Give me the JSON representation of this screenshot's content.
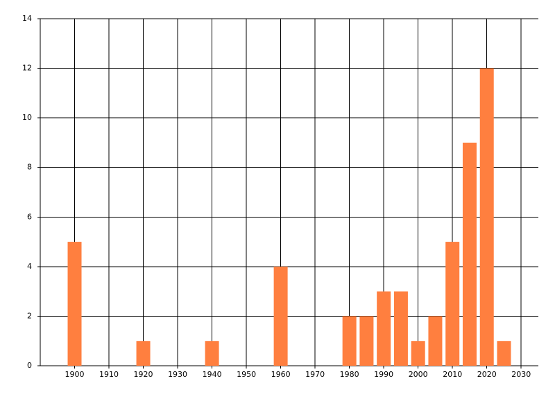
{
  "chart_data": {
    "type": "bar",
    "x": [
      1900,
      1920,
      1940,
      1960,
      1980,
      1985,
      1990,
      1995,
      2000,
      2005,
      2010,
      2015,
      2020,
      2025
    ],
    "values": [
      5,
      1,
      1,
      4,
      2,
      2,
      3,
      3,
      1,
      2,
      5,
      9,
      12,
      1
    ],
    "color": "#ff7f3f",
    "xlim": [
      1890,
      2035
    ],
    "xticks": [
      1900,
      1910,
      1920,
      1930,
      1940,
      1950,
      1960,
      1970,
      1980,
      1990,
      2000,
      2010,
      2020,
      2030
    ],
    "ylim": [
      0,
      14
    ],
    "yticks": [
      0,
      2,
      4,
      6,
      8,
      10,
      12,
      14
    ],
    "grid": true
  }
}
